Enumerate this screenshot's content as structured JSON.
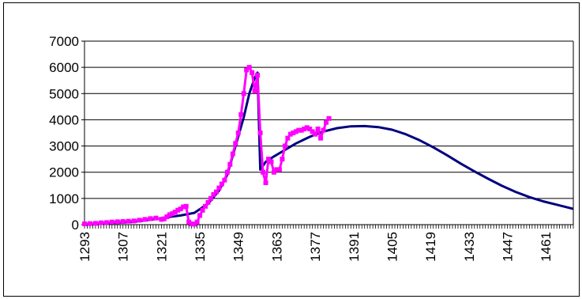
{
  "chart_data": {
    "type": "line",
    "title": "",
    "xlabel": "",
    "ylabel": "",
    "xlim": [
      1293,
      1471
    ],
    "ylim": [
      0,
      7000
    ],
    "yticks": [
      0,
      1000,
      2000,
      3000,
      4000,
      5000,
      6000,
      7000
    ],
    "xtick_labels": [
      "1293",
      "1307",
      "1321",
      "1335",
      "1349",
      "1363",
      "1377",
      "1391",
      "1405",
      "1419",
      "1433",
      "1447",
      "1461"
    ],
    "grid": "horizontal",
    "legend": "none",
    "series": [
      {
        "color": "#000080",
        "marker": "none",
        "points": [
          [
            1293,
            30
          ],
          [
            1300,
            50
          ],
          [
            1310,
            100
          ],
          [
            1318,
            200
          ],
          [
            1323,
            280
          ],
          [
            1328,
            350
          ],
          [
            1333,
            450
          ],
          [
            1338,
            800
          ],
          [
            1342,
            1300
          ],
          [
            1345,
            1900
          ],
          [
            1348,
            3000
          ],
          [
            1351,
            4100
          ],
          [
            1353,
            5000
          ],
          [
            1355,
            5600
          ],
          [
            1356,
            5800
          ],
          [
            1357,
            2100
          ],
          [
            1359,
            2400
          ],
          [
            1362,
            2600
          ],
          [
            1366,
            2850
          ],
          [
            1370,
            3100
          ],
          [
            1375,
            3350
          ],
          [
            1380,
            3550
          ],
          [
            1385,
            3680
          ],
          [
            1390,
            3750
          ],
          [
            1395,
            3760
          ],
          [
            1400,
            3720
          ],
          [
            1405,
            3620
          ],
          [
            1410,
            3450
          ],
          [
            1415,
            3220
          ],
          [
            1420,
            2950
          ],
          [
            1425,
            2650
          ],
          [
            1430,
            2330
          ],
          [
            1435,
            2030
          ],
          [
            1440,
            1750
          ],
          [
            1445,
            1480
          ],
          [
            1450,
            1250
          ],
          [
            1455,
            1050
          ],
          [
            1460,
            890
          ],
          [
            1465,
            760
          ],
          [
            1471,
            600
          ]
        ]
      },
      {
        "color": "#FF00FF",
        "marker": "square",
        "points": [
          [
            1293,
            30
          ],
          [
            1295,
            40
          ],
          [
            1297,
            50
          ],
          [
            1299,
            70
          ],
          [
            1301,
            80
          ],
          [
            1303,
            100
          ],
          [
            1305,
            110
          ],
          [
            1307,
            120
          ],
          [
            1309,
            130
          ],
          [
            1311,
            140
          ],
          [
            1313,
            170
          ],
          [
            1315,
            200
          ],
          [
            1317,
            230
          ],
          [
            1319,
            250
          ],
          [
            1321,
            200
          ],
          [
            1322,
            220
          ],
          [
            1323,
            300
          ],
          [
            1324,
            380
          ],
          [
            1325,
            420
          ],
          [
            1326,
            480
          ],
          [
            1327,
            550
          ],
          [
            1328,
            600
          ],
          [
            1329,
            680
          ],
          [
            1330,
            700
          ],
          [
            1331,
            100
          ],
          [
            1332,
            30
          ],
          [
            1333,
            20
          ],
          [
            1334,
            100
          ],
          [
            1335,
            350
          ],
          [
            1336,
            550
          ],
          [
            1337,
            700
          ],
          [
            1338,
            850
          ],
          [
            1339,
            1000
          ],
          [
            1340,
            1150
          ],
          [
            1341,
            1250
          ],
          [
            1342,
            1400
          ],
          [
            1343,
            1550
          ],
          [
            1344,
            1700
          ],
          [
            1345,
            2000
          ],
          [
            1346,
            2300
          ],
          [
            1347,
            2700
          ],
          [
            1348,
            3100
          ],
          [
            1349,
            3500
          ],
          [
            1350,
            4200
          ],
          [
            1351,
            5000
          ],
          [
            1352,
            5900
          ],
          [
            1353,
            6000
          ],
          [
            1354,
            5800
          ],
          [
            1355,
            5100
          ],
          [
            1356,
            5700
          ],
          [
            1357,
            3500
          ],
          [
            1358,
            2000
          ],
          [
            1359,
            1600
          ],
          [
            1360,
            2500
          ],
          [
            1361,
            2400
          ],
          [
            1362,
            2000
          ],
          [
            1363,
            2100
          ],
          [
            1364,
            2100
          ],
          [
            1365,
            2500
          ],
          [
            1366,
            3000
          ],
          [
            1367,
            3300
          ],
          [
            1368,
            3450
          ],
          [
            1369,
            3500
          ],
          [
            1370,
            3550
          ],
          [
            1371,
            3600
          ],
          [
            1372,
            3600
          ],
          [
            1373,
            3650
          ],
          [
            1374,
            3700
          ],
          [
            1375,
            3650
          ],
          [
            1376,
            3550
          ],
          [
            1377,
            3450
          ],
          [
            1378,
            3650
          ],
          [
            1379,
            3300
          ],
          [
            1380,
            3600
          ],
          [
            1381,
            3900
          ],
          [
            1382,
            4050
          ]
        ]
      }
    ]
  }
}
